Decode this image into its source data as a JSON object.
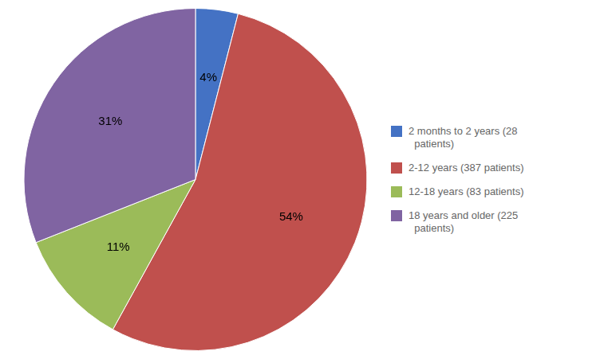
{
  "chart_data": {
    "type": "pie",
    "categories": [
      "2 months to 2 years (28\n  patients)",
      "2-12 years (387 patients)",
      "12-18 years (83 patients)",
      "18 years and older (225\n  patients)"
    ],
    "values": [
      4,
      54,
      11,
      31
    ],
    "value_labels": [
      "4%",
      "54%",
      "11%",
      "31%"
    ],
    "colors": [
      "#4472C4",
      "#C0504D",
      "#9BBB59",
      "#8064A2"
    ],
    "data_labels": true,
    "legend": "right"
  }
}
